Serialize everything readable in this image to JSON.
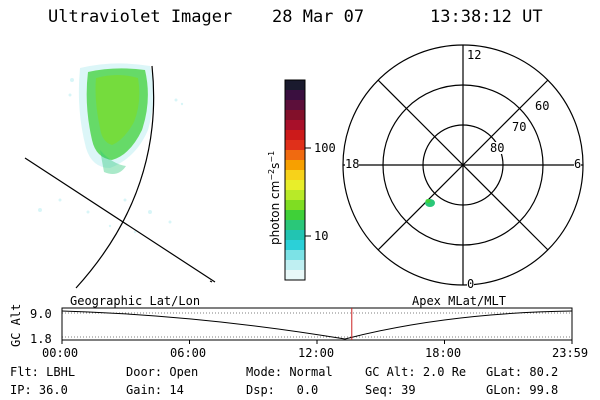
{
  "header": {
    "instrument": "Ultraviolet Imager",
    "date": "28 Mar 07",
    "time": "13:38:12 UT"
  },
  "colorbar": {
    "unit_label": "photon cm",
    "unit_sup1": "−2",
    "unit_mid": "s",
    "unit_sup2": "−1",
    "tick_high": "100",
    "tick_low": "10",
    "colors": [
      "#1a1a2e",
      "#3a0f3f",
      "#5c0f3a",
      "#82102a",
      "#a8102a",
      "#cc1a1a",
      "#e0301a",
      "#f06a10",
      "#f7a000",
      "#f7d21a",
      "#e8ee2a",
      "#b8ea28",
      "#7fdd22",
      "#3fd038",
      "#2ac779",
      "#22c4b2",
      "#2bd0d8",
      "#7ce2e6",
      "#bfeff2",
      "#e8f8f8"
    ]
  },
  "polar_plot": {
    "mlt_12": "12",
    "mlt_18": "18",
    "mlt_6": "6",
    "mlt_0": "0",
    "lat_60": "60",
    "lat_70": "70",
    "lat_80": "80"
  },
  "timeline": {
    "left_title": "Geographic Lat/Lon",
    "right_title": "Apex MLat/MLT",
    "axis_label": "GC Alt",
    "y_max": "9.0",
    "y_min": "1.8",
    "times": [
      "00:00",
      "06:00",
      "12:00",
      "18:00",
      "23:59"
    ],
    "marker_time_fraction": 0.5682,
    "line_color": "#cc2222"
  },
  "info": {
    "flt_label": "Flt:",
    "flt_value": "LBHL",
    "ip_label": "IP:",
    "ip_value": "36.0",
    "door_label": "Door:",
    "door_value": "Open",
    "gain_label": "Gain:",
    "gain_value": "14",
    "mode_label": "Mode:",
    "mode_value": "Normal",
    "dsp_label": "Dsp:",
    "dsp_value": "0.0",
    "gcalt_label": "GC Alt:",
    "gcalt_value": "2.0 Re",
    "seq_label": "Seq:",
    "seq_value": "39",
    "glat_label": "GLat:",
    "glat_value": "80.2",
    "glon_label": "GLon:",
    "glon_value": "99.8"
  }
}
